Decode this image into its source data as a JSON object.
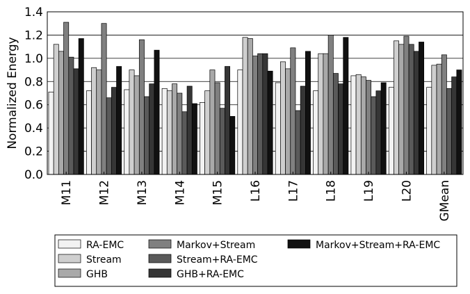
{
  "chart_data": {
    "type": "bar",
    "ylabel": "Normalized Energy",
    "xlabel": "",
    "title": "",
    "ylim": [
      0,
      1.4
    ],
    "yticks": [
      "0.0",
      "0.2",
      "0.4",
      "0.6",
      "0.8",
      "1.0",
      "1.2",
      "1.4"
    ],
    "grid": "horizontal",
    "legend_position": "bottom",
    "categories": [
      "M11",
      "M12",
      "M13",
      "M14",
      "M15",
      "L16",
      "L17",
      "L18",
      "L19",
      "L20",
      "GMean"
    ],
    "series": [
      {
        "name": "RA-EMC",
        "color": "#f2f2f2",
        "values": [
          0.71,
          0.72,
          0.73,
          0.74,
          0.62,
          0.9,
          0.79,
          0.72,
          0.85,
          0.75,
          0.75
        ]
      },
      {
        "name": "Stream",
        "color": "#cfcfcf",
        "values": [
          1.12,
          0.92,
          0.9,
          0.72,
          0.72,
          1.18,
          0.97,
          1.04,
          0.86,
          1.15,
          0.94
        ]
      },
      {
        "name": "GHB",
        "color": "#a9a9a9",
        "values": [
          1.06,
          0.9,
          0.85,
          0.78,
          0.9,
          1.17,
          0.91,
          1.04,
          0.84,
          1.12,
          0.95
        ]
      },
      {
        "name": "Markov+Stream",
        "color": "#808080",
        "values": [
          1.31,
          1.3,
          1.16,
          0.7,
          0.79,
          1.02,
          1.09,
          1.2,
          0.81,
          1.19,
          1.03
        ]
      },
      {
        "name": "Stream+RA-EMC",
        "color": "#5a5a5a",
        "values": [
          1.01,
          0.66,
          0.67,
          0.54,
          0.57,
          1.04,
          0.55,
          0.87,
          0.67,
          1.12,
          0.74
        ]
      },
      {
        "name": "GHB+RA-EMC",
        "color": "#363636",
        "values": [
          0.91,
          0.75,
          0.78,
          0.76,
          0.93,
          1.04,
          0.76,
          0.78,
          0.72,
          1.06,
          0.84
        ]
      },
      {
        "name": "Markov+Stream+RA-EMC",
        "color": "#111111",
        "values": [
          1.17,
          0.93,
          1.07,
          0.61,
          0.5,
          0.89,
          1.06,
          1.18,
          0.79,
          1.14,
          0.9
        ]
      }
    ]
  }
}
